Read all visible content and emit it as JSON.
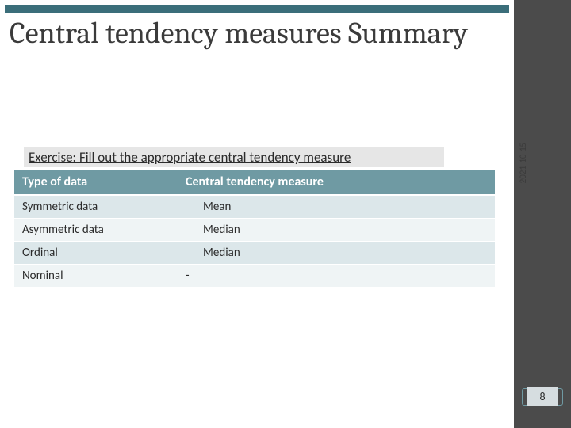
{
  "title": "Central tendency measures Summary",
  "date": "2021-10-15",
  "exercise_label": "Exercise: Fill out the appropriate central tendency measure",
  "table": {
    "columns": [
      "Type of data",
      "Central tendency measure",
      ""
    ],
    "rows": [
      {
        "type": "Symmetric data",
        "measure": "Mean",
        "extra": ""
      },
      {
        "type": "Asymmetric data",
        "measure": "Median",
        "extra": ""
      },
      {
        "type": "Ordinal",
        "measure": "Median",
        "extra": ""
      },
      {
        "type": "Nominal",
        "measure": "-",
        "extra": ""
      }
    ]
  },
  "page_number": "8",
  "colors": {
    "sidebar": "#4b4b4b",
    "accent": "#3b6e7a",
    "header_bg": "#6f9aa3",
    "row_odd": "#dce7ea",
    "row_even": "#eff4f5",
    "page_box": "#d6dde0"
  }
}
